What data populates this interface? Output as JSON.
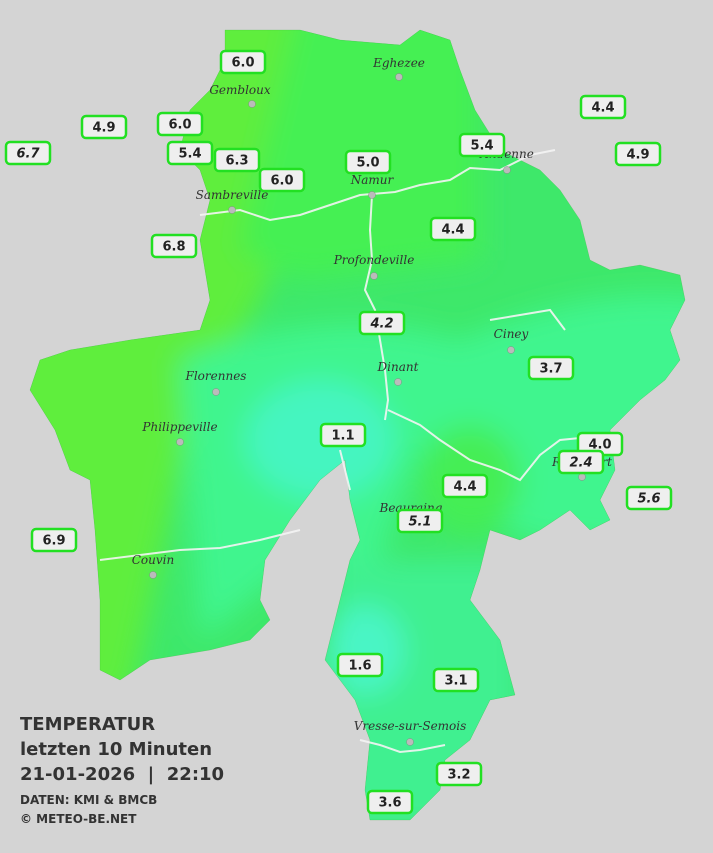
{
  "map": {
    "cities": [
      "Eghezee",
      "Gembloux",
      "Andenne",
      "Namur",
      "Sambreville",
      "Profondeville",
      "Ciney",
      "Florennes",
      "Dinant",
      "Philippeville",
      "Rochefort",
      "Beauraing",
      "Couvin",
      "Vresse-sur-Semois"
    ],
    "stations": [
      {
        "label": "6.0"
      },
      {
        "label": "4.9"
      },
      {
        "label": "6.0"
      },
      {
        "label": "5.4"
      },
      {
        "label": "6.3"
      },
      {
        "label": "6.0"
      },
      {
        "label": "5.0"
      },
      {
        "label": "5.4"
      },
      {
        "label": "4.4"
      },
      {
        "label": "4.9"
      },
      {
        "label": "6.7",
        "italic": true
      },
      {
        "label": "6.8"
      },
      {
        "label": "4.4"
      },
      {
        "label": "4.2",
        "italic": true
      },
      {
        "label": "3.7"
      },
      {
        "label": "1.1"
      },
      {
        "label": "4.0"
      },
      {
        "label": "2.4",
        "italic": true
      },
      {
        "label": "5.6",
        "italic": true
      },
      {
        "label": "4.4"
      },
      {
        "label": "5.1",
        "italic": true
      },
      {
        "label": "6.9"
      },
      {
        "label": "1.6"
      },
      {
        "label": "3.1"
      },
      {
        "label": "3.2"
      },
      {
        "label": "3.6"
      }
    ],
    "caption": {
      "title": "TEMPERATUR",
      "subtitle": "letzten 10 Minuten",
      "datetime": "21-01-2026  |  22:10",
      "source": "DATEN: KMI & BMCB",
      "credit": "© METEO-BE.NET"
    }
  }
}
